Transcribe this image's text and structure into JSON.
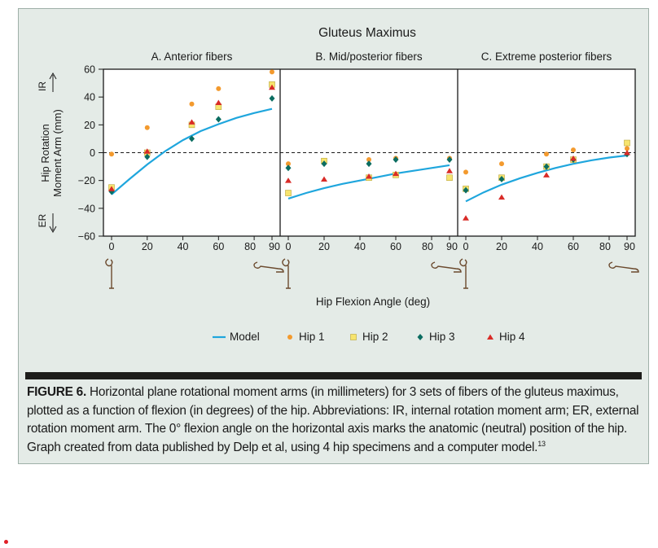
{
  "chart_data": {
    "type": "scatter",
    "title": "Gluteus Maximus",
    "xlabel": "Hip Flexion Angle (deg)",
    "ylabel_line1": "Hip Rotation",
    "ylabel_line2": "Moment Arm (mm)",
    "ir_label": "IR",
    "er_label": "ER",
    "ylim": [
      -60,
      60
    ],
    "yticks": [
      60,
      40,
      20,
      0,
      -20,
      -40,
      -60
    ],
    "xlim": [
      0,
      90
    ],
    "xticks": [
      0,
      20,
      40,
      60,
      80,
      90
    ],
    "grid": false,
    "reference_line_y": 0,
    "legend_position": "bottom",
    "colors": {
      "model": "#1fa6dd",
      "hip1": "#f39a2e",
      "hip2": "#f7e46e",
      "hip3": "#0b6d61",
      "hip4": "#d92b27"
    },
    "legend": [
      {
        "key": "model",
        "label": "Model"
      },
      {
        "key": "hip1",
        "label": "Hip 1"
      },
      {
        "key": "hip2",
        "label": "Hip 2"
      },
      {
        "key": "hip3",
        "label": "Hip 3"
      },
      {
        "key": "hip4",
        "label": "Hip 4"
      }
    ],
    "panels": [
      {
        "title": "A. Anterior fibers",
        "model": {
          "x": [
            0,
            10,
            20,
            30,
            40,
            50,
            60,
            70,
            80,
            90
          ],
          "y": [
            -30,
            -19,
            -8.5,
            1,
            9,
            15.5,
            20.5,
            25,
            28.5,
            31.5
          ]
        },
        "series": [
          {
            "key": "hip1",
            "x": [
              0,
              20,
              45,
              60,
              90
            ],
            "y": [
              -1,
              18,
              35,
              46,
              58
            ]
          },
          {
            "key": "hip2",
            "x": [
              0,
              20,
              45,
              60,
              90
            ],
            "y": [
              -25,
              0,
              20,
              33,
              49
            ]
          },
          {
            "key": "hip3",
            "x": [
              0,
              20,
              45,
              60,
              90
            ],
            "y": [
              -28,
              -3,
              10,
              24,
              39
            ]
          },
          {
            "key": "hip4",
            "x": [
              0,
              20,
              45,
              60,
              90
            ],
            "y": [
              -26,
              1,
              22,
              36,
              47
            ]
          }
        ]
      },
      {
        "title": "B. Mid/posterior fibers",
        "model": {
          "x": [
            0,
            10,
            20,
            30,
            40,
            50,
            60,
            70,
            80,
            90
          ],
          "y": [
            -33,
            -29,
            -25.5,
            -22.5,
            -20,
            -17.5,
            -15,
            -13,
            -11,
            -9
          ]
        },
        "series": [
          {
            "key": "hip1",
            "x": [
              0,
              20,
              45,
              60,
              90
            ],
            "y": [
              -8,
              -6,
              -5,
              -4,
              -4
            ]
          },
          {
            "key": "hip2",
            "x": [
              0,
              20,
              45,
              60,
              90
            ],
            "y": [
              -29,
              -6,
              -18,
              -16,
              -18
            ]
          },
          {
            "key": "hip3",
            "x": [
              0,
              20,
              45,
              60,
              90
            ],
            "y": [
              -11,
              -8,
              -8,
              -5,
              -5
            ]
          },
          {
            "key": "hip4",
            "x": [
              0,
              20,
              45,
              60,
              90
            ],
            "y": [
              -20,
              -19,
              -17,
              -15,
              -13
            ]
          }
        ]
      },
      {
        "title": "C. Extreme posterior fibers",
        "model": {
          "x": [
            0,
            10,
            20,
            30,
            40,
            50,
            60,
            70,
            80,
            90
          ],
          "y": [
            -35,
            -28.5,
            -23,
            -18.5,
            -14.5,
            -11,
            -8,
            -5.5,
            -3.5,
            -2
          ]
        },
        "series": [
          {
            "key": "hip1",
            "x": [
              0,
              20,
              45,
              60,
              90
            ],
            "y": [
              -14,
              -8,
              -1,
              2,
              3
            ]
          },
          {
            "key": "hip2",
            "x": [
              0,
              20,
              45,
              60,
              90
            ],
            "y": [
              -26,
              -18,
              -10,
              -5,
              7
            ]
          },
          {
            "key": "hip3",
            "x": [
              0,
              20,
              45,
              60,
              90
            ],
            "y": [
              -27,
              -19,
              -10,
              -5,
              -1
            ]
          },
          {
            "key": "hip4",
            "x": [
              0,
              20,
              45,
              60,
              90
            ],
            "y": [
              -47,
              -32,
              -16,
              -4,
              0
            ]
          }
        ]
      }
    ]
  },
  "caption": {
    "label": "FIGURE 6.",
    "text": " Horizontal plane rotational moment arms (in millimeters) for 3 sets of fibers of the gluteus maximus, plotted as a function of flexion (in degrees) of the hip. Abbreviations: IR, internal rotation moment arm; ER, external rotation moment arm. The 0° flexion angle on the horizontal axis marks the anatomic (neutral) position of the hip. Graph created from data published by Delp et al, using 4 hip specimens and a computer model.",
    "reference": "13"
  }
}
